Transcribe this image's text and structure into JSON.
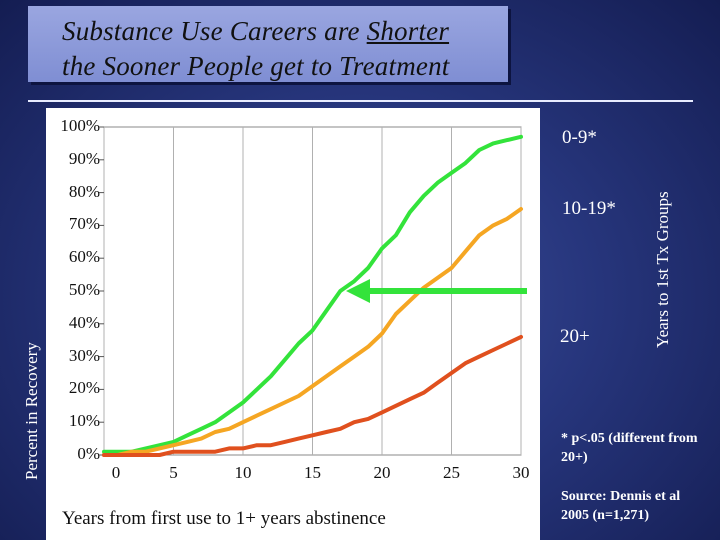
{
  "slide": {
    "title_line1_pre": "Substance Use Careers are ",
    "title_line1_underlined": "Shorter",
    "title_line2": "the Sooner People get to Treatment",
    "note_significance": "* p<.05 (different from 20+)",
    "note_source": "Source: Dennis et al 2005 (n=1,271)"
  },
  "colors": {
    "series_0_9": "#33e33b",
    "series_10_19": "#f5a623",
    "series_20_plus": "#e0501e",
    "arrow": "#33e33b",
    "background": "#27367d",
    "title_box": "#8d9ad9"
  },
  "chart_data": {
    "type": "line",
    "xlabel": "Years from first use to 1+ years abstinence",
    "ylabel": "Percent in Recovery",
    "y2label": "Years to 1st Tx Groups",
    "xlim": [
      0,
      30
    ],
    "ylim": [
      0,
      100
    ],
    "x_ticks": [
      "0",
      "5",
      "10",
      "15",
      "20",
      "25",
      "30"
    ],
    "y_ticks": [
      "0%",
      "10%",
      "20%",
      "30%",
      "40%",
      "50%",
      "60%",
      "70%",
      "80%",
      "90%",
      "100%"
    ],
    "grid": "vertical",
    "legend": "right",
    "arrow_at_percent": 50,
    "series": [
      {
        "name": "0-9*",
        "x": [
          0,
          1,
          2,
          3,
          4,
          5,
          6,
          7,
          8,
          9,
          10,
          11,
          12,
          13,
          14,
          15,
          16,
          17,
          18,
          19,
          20,
          21,
          22,
          23,
          24,
          25,
          26,
          27,
          28,
          29,
          30
        ],
        "values": [
          1,
          1,
          1,
          2,
          3,
          4,
          6,
          8,
          10,
          13,
          16,
          20,
          24,
          29,
          34,
          38,
          44,
          50,
          53,
          57,
          63,
          67,
          74,
          79,
          83,
          86,
          89,
          93,
          95,
          96,
          97
        ]
      },
      {
        "name": "10-19*",
        "x": [
          0,
          1,
          2,
          3,
          4,
          5,
          6,
          7,
          8,
          9,
          10,
          11,
          12,
          13,
          14,
          15,
          16,
          17,
          18,
          19,
          20,
          21,
          22,
          23,
          24,
          25,
          26,
          27,
          28,
          29,
          30
        ],
        "values": [
          0,
          0,
          1,
          1,
          2,
          3,
          4,
          5,
          7,
          8,
          10,
          12,
          14,
          16,
          18,
          21,
          24,
          27,
          30,
          33,
          37,
          43,
          47,
          51,
          54,
          57,
          62,
          67,
          70,
          72,
          75
        ]
      },
      {
        "name": "20+",
        "x": [
          0,
          1,
          2,
          3,
          4,
          5,
          6,
          7,
          8,
          9,
          10,
          11,
          12,
          13,
          14,
          15,
          16,
          17,
          18,
          19,
          20,
          21,
          22,
          23,
          24,
          25,
          26,
          27,
          28,
          29,
          30
        ],
        "values": [
          0,
          0,
          0,
          0,
          0,
          1,
          1,
          1,
          1,
          2,
          2,
          3,
          3,
          4,
          5,
          6,
          7,
          8,
          10,
          11,
          13,
          15,
          17,
          19,
          22,
          25,
          28,
          30,
          32,
          34,
          36
        ]
      }
    ]
  }
}
